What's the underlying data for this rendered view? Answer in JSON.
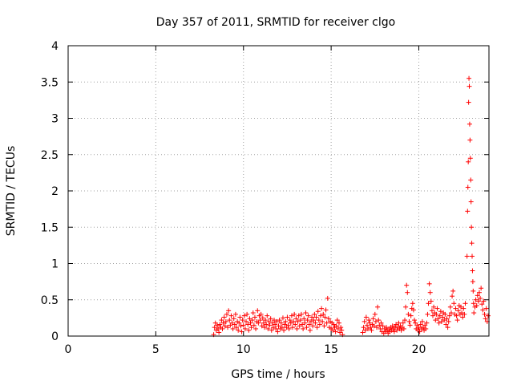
{
  "chart_data": {
    "type": "scatter",
    "title": "Day 357 of 2011, SRMTID for receiver clgo",
    "xlabel": "GPS time / hours",
    "ylabel": "SRMTID / TECUs",
    "xlim": [
      0,
      24
    ],
    "ylim": [
      0,
      4
    ],
    "xticks": [
      0,
      5,
      10,
      15,
      20
    ],
    "yticks": [
      0,
      0.5,
      1,
      1.5,
      2,
      2.5,
      3,
      3.5,
      4
    ],
    "xtick_labels": [
      "0",
      "5",
      "10",
      "15",
      "20"
    ],
    "ytick_labels": [
      "0",
      "0.5",
      "1",
      "1.5",
      "2",
      "2.5",
      "3",
      "3.5",
      "4"
    ],
    "grid": true,
    "marker": "+",
    "color": "#ff0000",
    "series": [
      {
        "points": [
          [
            8.3,
            0.02
          ],
          [
            8.35,
            0.12
          ],
          [
            8.4,
            0.18
          ],
          [
            8.45,
            0.08
          ],
          [
            8.5,
            0.15
          ],
          [
            8.55,
            0.1
          ],
          [
            8.6,
            0.05
          ],
          [
            8.65,
            0.16
          ],
          [
            8.7,
            0.12
          ],
          [
            8.75,
            0.22
          ],
          [
            8.8,
            0.1
          ],
          [
            8.85,
            0.18
          ],
          [
            8.9,
            0.26
          ],
          [
            8.95,
            0.14
          ],
          [
            9.0,
            0.2
          ],
          [
            9.05,
            0.3
          ],
          [
            9.1,
            0.12
          ],
          [
            9.15,
            0.35
          ],
          [
            9.2,
            0.22
          ],
          [
            9.25,
            0.15
          ],
          [
            9.3,
            0.28
          ],
          [
            9.35,
            0.18
          ],
          [
            9.4,
            0.1
          ],
          [
            9.45,
            0.24
          ],
          [
            9.5,
            0.16
          ],
          [
            9.55,
            0.3
          ],
          [
            9.6,
            0.12
          ],
          [
            9.65,
            0.2
          ],
          [
            9.7,
            0.08
          ],
          [
            9.75,
            0.18
          ],
          [
            9.8,
            0.26
          ],
          [
            9.85,
            0.14
          ],
          [
            9.9,
            0.06
          ],
          [
            9.95,
            0.22
          ],
          [
            10.0,
            0.15
          ],
          [
            10.05,
            0.28
          ],
          [
            10.1,
            0.1
          ],
          [
            10.15,
            0.2
          ],
          [
            10.2,
            0.3
          ],
          [
            10.25,
            0.16
          ],
          [
            10.3,
            0.08
          ],
          [
            10.35,
            0.24
          ],
          [
            10.4,
            0.18
          ],
          [
            10.45,
            0.12
          ],
          [
            10.5,
            0.22
          ],
          [
            10.55,
            0.32
          ],
          [
            10.6,
            0.15
          ],
          [
            10.65,
            0.26
          ],
          [
            10.7,
            0.1
          ],
          [
            10.75,
            0.2
          ],
          [
            10.8,
            0.35
          ],
          [
            10.85,
            0.18
          ],
          [
            10.9,
            0.28
          ],
          [
            10.95,
            0.22
          ],
          [
            11.0,
            0.3
          ],
          [
            11.05,
            0.14
          ],
          [
            11.1,
            0.25
          ],
          [
            11.15,
            0.18
          ],
          [
            11.2,
            0.12
          ],
          [
            11.25,
            0.22
          ],
          [
            11.3,
            0.16
          ],
          [
            11.35,
            0.28
          ],
          [
            11.4,
            0.1
          ],
          [
            11.45,
            0.2
          ],
          [
            11.5,
            0.15
          ],
          [
            11.55,
            0.24
          ],
          [
            11.6,
            0.08
          ],
          [
            11.65,
            0.18
          ],
          [
            11.7,
            0.12
          ],
          [
            11.75,
            0.22
          ],
          [
            11.8,
            0.16
          ],
          [
            11.85,
            0.1
          ],
          [
            11.9,
            0.2
          ],
          [
            11.95,
            0.06
          ],
          [
            12.0,
            0.14
          ],
          [
            12.05,
            0.22
          ],
          [
            12.1,
            0.1
          ],
          [
            12.15,
            0.18
          ],
          [
            12.2,
            0.12
          ],
          [
            12.25,
            0.25
          ],
          [
            12.3,
            0.08
          ],
          [
            12.35,
            0.16
          ],
          [
            12.4,
            0.2
          ],
          [
            12.45,
            0.12
          ],
          [
            12.5,
            0.26
          ],
          [
            12.55,
            0.15
          ],
          [
            12.6,
            0.1
          ],
          [
            12.65,
            0.22
          ],
          [
            12.7,
            0.18
          ],
          [
            12.75,
            0.28
          ],
          [
            12.8,
            0.12
          ],
          [
            12.85,
            0.2
          ],
          [
            12.9,
            0.3
          ],
          [
            12.95,
            0.16
          ],
          [
            13.0,
            0.24
          ],
          [
            13.05,
            0.1
          ],
          [
            13.1,
            0.2
          ],
          [
            13.15,
            0.28
          ],
          [
            13.2,
            0.14
          ],
          [
            13.25,
            0.22
          ],
          [
            13.3,
            0.3
          ],
          [
            13.35,
            0.16
          ],
          [
            13.4,
            0.1
          ],
          [
            13.45,
            0.24
          ],
          [
            13.5,
            0.18
          ],
          [
            13.55,
            0.32
          ],
          [
            13.6,
            0.12
          ],
          [
            13.65,
            0.22
          ],
          [
            13.7,
            0.28
          ],
          [
            13.75,
            0.16
          ],
          [
            13.8,
            0.08
          ],
          [
            13.85,
            0.2
          ],
          [
            13.9,
            0.26
          ],
          [
            13.95,
            0.14
          ],
          [
            14.0,
            0.22
          ],
          [
            14.05,
            0.3
          ],
          [
            14.1,
            0.18
          ],
          [
            14.15,
            0.26
          ],
          [
            14.2,
            0.12
          ],
          [
            14.25,
            0.34
          ],
          [
            14.3,
            0.22
          ],
          [
            14.35,
            0.16
          ],
          [
            14.4,
            0.28
          ],
          [
            14.45,
            0.38
          ],
          [
            14.5,
            0.2
          ],
          [
            14.55,
            0.3
          ],
          [
            14.6,
            0.14
          ],
          [
            14.65,
            0.26
          ],
          [
            14.7,
            0.36
          ],
          [
            14.75,
            0.18
          ],
          [
            14.8,
            0.52
          ],
          [
            14.85,
            0.24
          ],
          [
            14.9,
            0.12
          ],
          [
            14.95,
            0.2
          ],
          [
            15.0,
            0.1
          ],
          [
            15.05,
            0.18
          ],
          [
            15.1,
            0.08
          ],
          [
            15.15,
            0.16
          ],
          [
            15.2,
            0.12
          ],
          [
            15.25,
            0.06
          ],
          [
            15.3,
            0.14
          ],
          [
            15.35,
            0.22
          ],
          [
            15.4,
            0.1
          ],
          [
            15.45,
            0.18
          ],
          [
            15.5,
            0.05
          ],
          [
            15.55,
            0.12
          ],
          [
            15.6,
            0.08
          ],
          [
            15.65,
            0.02
          ],
          [
            16.8,
            0.05
          ],
          [
            16.85,
            0.12
          ],
          [
            16.9,
            0.2
          ],
          [
            16.95,
            0.08
          ],
          [
            17.0,
            0.26
          ],
          [
            17.05,
            0.15
          ],
          [
            17.1,
            0.1
          ],
          [
            17.15,
            0.22
          ],
          [
            17.2,
            0.18
          ],
          [
            17.25,
            0.12
          ],
          [
            17.3,
            0.08
          ],
          [
            17.35,
            0.16
          ],
          [
            17.4,
            0.24
          ],
          [
            17.45,
            0.14
          ],
          [
            17.5,
            0.3
          ],
          [
            17.55,
            0.2
          ],
          [
            17.6,
            0.12
          ],
          [
            17.65,
            0.4
          ],
          [
            17.7,
            0.22
          ],
          [
            17.75,
            0.15
          ],
          [
            17.8,
            0.1
          ],
          [
            17.85,
            0.18
          ],
          [
            17.9,
            0.06
          ],
          [
            17.95,
            0.14
          ],
          [
            18.0,
            0.04
          ],
          [
            18.05,
            0.1
          ],
          [
            18.1,
            0.06
          ],
          [
            18.15,
            0.12
          ],
          [
            18.2,
            0.08
          ],
          [
            18.25,
            0.04
          ],
          [
            18.3,
            0.1
          ],
          [
            18.35,
            0.06
          ],
          [
            18.4,
            0.12
          ],
          [
            18.45,
            0.08
          ],
          [
            18.5,
            0.14
          ],
          [
            18.55,
            0.1
          ],
          [
            18.6,
            0.06
          ],
          [
            18.65,
            0.12
          ],
          [
            18.7,
            0.16
          ],
          [
            18.75,
            0.08
          ],
          [
            18.8,
            0.12
          ],
          [
            18.85,
            0.18
          ],
          [
            18.9,
            0.1
          ],
          [
            18.95,
            0.14
          ],
          [
            19.0,
            0.08
          ],
          [
            19.05,
            0.12
          ],
          [
            19.1,
            0.18
          ],
          [
            19.15,
            0.1
          ],
          [
            19.2,
            0.22
          ],
          [
            19.25,
            0.4
          ],
          [
            19.3,
            0.7
          ],
          [
            19.35,
            0.6
          ],
          [
            19.4,
            0.3
          ],
          [
            19.45,
            0.2
          ],
          [
            19.5,
            0.15
          ],
          [
            19.55,
            0.28
          ],
          [
            19.6,
            0.38
          ],
          [
            19.65,
            0.45
          ],
          [
            19.7,
            0.36
          ],
          [
            19.75,
            0.22
          ],
          [
            19.8,
            0.18
          ],
          [
            19.85,
            0.1
          ],
          [
            19.9,
            0.15
          ],
          [
            19.95,
            0.08
          ],
          [
            20.0,
            0.12
          ],
          [
            20.05,
            0.06
          ],
          [
            20.1,
            0.16
          ],
          [
            20.15,
            0.1
          ],
          [
            20.2,
            0.2
          ],
          [
            20.25,
            0.12
          ],
          [
            20.3,
            0.08
          ],
          [
            20.35,
            0.15
          ],
          [
            20.4,
            0.1
          ],
          [
            20.45,
            0.18
          ],
          [
            20.5,
            0.3
          ],
          [
            20.55,
            0.45
          ],
          [
            20.6,
            0.72
          ],
          [
            20.65,
            0.6
          ],
          [
            20.7,
            0.48
          ],
          [
            20.75,
            0.35
          ],
          [
            20.8,
            0.28
          ],
          [
            20.85,
            0.4
          ],
          [
            20.9,
            0.32
          ],
          [
            20.95,
            0.22
          ],
          [
            21.0,
            0.3
          ],
          [
            21.05,
            0.38
          ],
          [
            21.1,
            0.24
          ],
          [
            21.15,
            0.18
          ],
          [
            21.2,
            0.28
          ],
          [
            21.25,
            0.34
          ],
          [
            21.3,
            0.2
          ],
          [
            21.35,
            0.26
          ],
          [
            21.4,
            0.32
          ],
          [
            21.45,
            0.22
          ],
          [
            21.5,
            0.3
          ],
          [
            21.55,
            0.16
          ],
          [
            21.6,
            0.24
          ],
          [
            21.65,
            0.12
          ],
          [
            21.7,
            0.2
          ],
          [
            21.75,
            0.28
          ],
          [
            21.8,
            0.4
          ],
          [
            21.85,
            0.32
          ],
          [
            21.9,
            0.55
          ],
          [
            21.95,
            0.62
          ],
          [
            22.0,
            0.45
          ],
          [
            22.05,
            0.3
          ],
          [
            22.1,
            0.38
          ],
          [
            22.15,
            0.28
          ],
          [
            22.2,
            0.22
          ],
          [
            22.25,
            0.35
          ],
          [
            22.3,
            0.42
          ],
          [
            22.35,
            0.3
          ],
          [
            22.4,
            0.4
          ],
          [
            22.45,
            0.32
          ],
          [
            22.5,
            0.26
          ],
          [
            22.55,
            0.38
          ],
          [
            22.6,
            0.3
          ],
          [
            22.65,
            0.45
          ],
          [
            22.75,
            1.1
          ],
          [
            22.78,
            1.72
          ],
          [
            22.8,
            2.05
          ],
          [
            22.82,
            2.4
          ],
          [
            22.84,
            3.22
          ],
          [
            22.86,
            3.55
          ],
          [
            22.88,
            3.44
          ],
          [
            22.9,
            2.92
          ],
          [
            22.92,
            2.7
          ],
          [
            22.94,
            2.45
          ],
          [
            22.96,
            2.15
          ],
          [
            22.98,
            1.85
          ],
          [
            23.0,
            1.5
          ],
          [
            23.02,
            1.28
          ],
          [
            23.04,
            1.1
          ],
          [
            23.06,
            0.9
          ],
          [
            23.08,
            0.75
          ],
          [
            23.1,
            0.62
          ],
          [
            23.12,
            0.45
          ],
          [
            23.14,
            0.32
          ],
          [
            23.2,
            0.4
          ],
          [
            23.25,
            0.5
          ],
          [
            23.3,
            0.42
          ],
          [
            23.35,
            0.56
          ],
          [
            23.4,
            0.48
          ],
          [
            23.45,
            0.6
          ],
          [
            23.5,
            0.52
          ],
          [
            23.55,
            0.66
          ],
          [
            23.6,
            0.44
          ],
          [
            23.65,
            0.36
          ],
          [
            23.7,
            0.48
          ],
          [
            23.75,
            0.3
          ],
          [
            23.8,
            0.24
          ],
          [
            23.85,
            0.38
          ],
          [
            23.9,
            0.2
          ],
          [
            23.95,
            0.28
          ]
        ]
      }
    ]
  }
}
